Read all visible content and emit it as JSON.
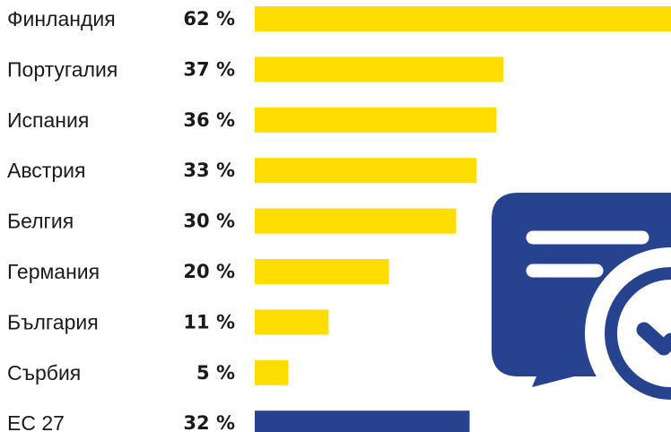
{
  "chart_data": {
    "type": "bar",
    "orientation": "horizontal",
    "categories": [
      "Финландия",
      "Португалия",
      "Испания",
      "Австрия",
      "Белгия",
      "Германия",
      "България",
      "Сърбия",
      "ЕС 27"
    ],
    "values": [
      62,
      37,
      36,
      33,
      30,
      20,
      11,
      5,
      32
    ],
    "value_labels": [
      "62 %",
      "37 %",
      "36 %",
      "33 %",
      "30 %",
      "20 %",
      "11 %",
      "5 %",
      "32 %"
    ],
    "xlim": [
      0,
      62
    ],
    "grid": false,
    "colors": {
      "bar": "#FFDD00",
      "highlight_bar": "#27428F",
      "icon": "#27428F"
    },
    "highlight_category": "ЕС 27",
    "icon": "chat-bubble-check-icon"
  }
}
